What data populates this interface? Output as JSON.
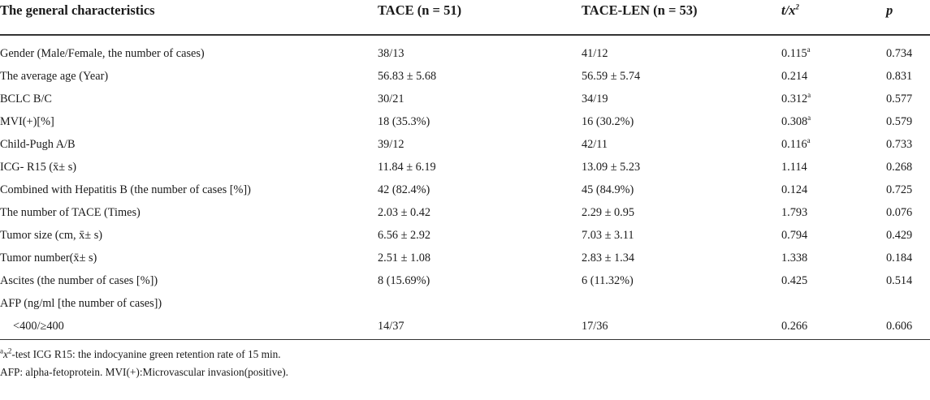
{
  "table": {
    "headers": [
      "The general characteristics",
      "TACE (n = 51)",
      "TACE-LEN (n = 53)",
      "t/x",
      "p"
    ],
    "header_t_sup": "2",
    "rows": [
      {
        "label": "Gender (Male/Female, the number of cases)",
        "tace": "38/13",
        "tacelen": "41/12",
        "stat": "0.115",
        "stat_sup": "a",
        "p": "0.734"
      },
      {
        "label": "The average age (Year)",
        "tace": "56.83 ± 5.68",
        "tacelen": "56.59 ± 5.74",
        "stat": "0.214",
        "stat_sup": "",
        "p": "0.831"
      },
      {
        "label": "BCLC B/C",
        "tace": "30/21",
        "tacelen": "34/19",
        "stat": "0.312",
        "stat_sup": "a",
        "p": "0.577"
      },
      {
        "label": "MVI(+)[%]",
        "tace": "18 (35.3%)",
        "tacelen": "16 (30.2%)",
        "stat": "0.308",
        "stat_sup": "a",
        "p": "0.579"
      },
      {
        "label": "Child-Pugh A/B",
        "tace": "39/12",
        "tacelen": "42/11",
        "stat": "0.116",
        "stat_sup": "a",
        "p": "0.733"
      },
      {
        "label": "ICG- R15  (x̄± s)",
        "tace": "11.84 ± 6.19",
        "tacelen": "13.09 ± 5.23",
        "stat": "1.114",
        "stat_sup": "",
        "p": "0.268"
      },
      {
        "label": "Combined with Hepatitis B (the number of cases [%])",
        "tace": "42 (82.4%)",
        "tacelen": "45 (84.9%)",
        "stat": "0.124",
        "stat_sup": "",
        "p": "0.725"
      },
      {
        "label": "The number of TACE (Times)",
        "tace": "2.03 ± 0.42",
        "tacelen": "2.29 ± 0.95",
        "stat": "1.793",
        "stat_sup": "",
        "p": "0.076"
      },
      {
        "label": "Tumor size (cm, x̄± s)",
        "tace": "6.56 ± 2.92",
        "tacelen": "7.03 ± 3.11",
        "stat": "0.794",
        "stat_sup": "",
        "p": "0.429"
      },
      {
        "label": "Tumor number(x̄± s)",
        "tace": "2.51 ± 1.08",
        "tacelen": "2.83 ± 1.34",
        "stat": "1.338",
        "stat_sup": "",
        "p": "0.184"
      },
      {
        "label": "Ascites (the number of cases [%])",
        "tace": "8 (15.69%)",
        "tacelen": "6 (11.32%)",
        "stat": "0.425",
        "stat_sup": "",
        "p": "0.514"
      },
      {
        "label": "AFP (ng/ml [the number of cases])",
        "tace": "",
        "tacelen": "",
        "stat": "",
        "stat_sup": "",
        "p": ""
      },
      {
        "label": "<400/≥400",
        "tace": "14/37",
        "tacelen": "17/36",
        "stat": "0.266",
        "stat_sup": "",
        "p": "0.606",
        "indent": true
      }
    ]
  },
  "footnotes": {
    "line1_sup": "a",
    "line1_x": "x",
    "line1_x_sup": "2",
    "line1_rest": "-test ICG R15: the indocyanine green retention rate of 15 min.",
    "line2": "AFP: alpha-fetoprotein. MVI(+):Microvascular invasion(positive)."
  }
}
